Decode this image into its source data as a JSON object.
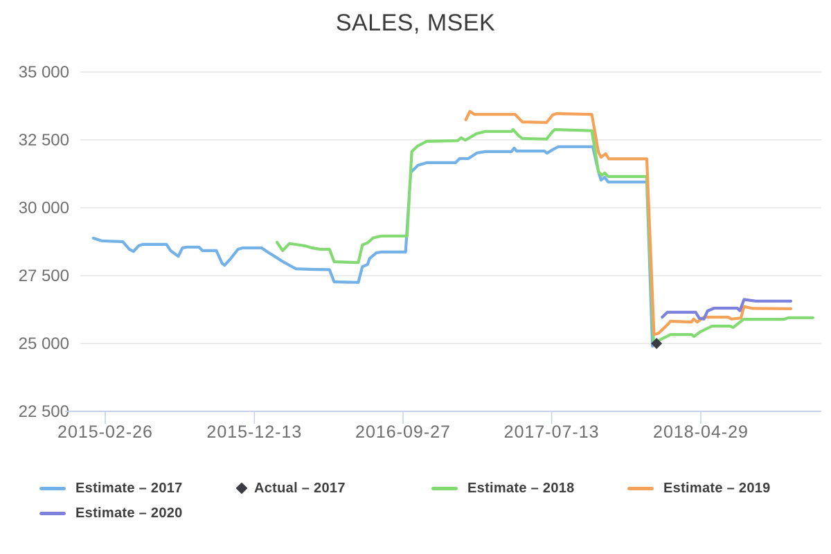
{
  "chart_data": {
    "type": "line",
    "title": "SALES, MSEK",
    "legend_position": "bottom-left",
    "grid": true,
    "y_axis": {
      "min": 22500,
      "max": 35000,
      "tick_interval": 2500,
      "ticks": [
        {
          "value": 35000,
          "label": "35 000"
        },
        {
          "value": 32500,
          "label": "32 500"
        },
        {
          "value": 30000,
          "label": "30 000"
        },
        {
          "value": 27500,
          "label": "27 500"
        },
        {
          "value": 25000,
          "label": "25 000"
        },
        {
          "value": 22500,
          "label": "22 500"
        }
      ]
    },
    "x_axis": {
      "tick_dates": [
        "2015-02-26",
        "2015-12-13",
        "2016-09-27",
        "2017-07-13",
        "2018-04-29"
      ],
      "tick_labels": [
        "2015-02-26",
        "2015-12-13",
        "2016-09-27",
        "2017-07-13",
        "2018-04-29"
      ]
    },
    "colors": {
      "estimate_2017": "#73B1E7",
      "actual_2017": "#3B3B43",
      "estimate_2018": "#83DA72",
      "estimate_2019": "#F4A259",
      "estimate_2020": "#7C81DC",
      "axis_line": "#C5D2EA",
      "gridline": "#E6E6E6",
      "axis_text": "#6E6E6E",
      "legend_text": "#3E3E3E",
      "title_text": "#3B3B3B"
    },
    "series": [
      {
        "name": "Estimate – 2017",
        "marker": "line",
        "color": "#73B1E7",
        "points": [
          [
            "2015-02-03",
            28880
          ],
          [
            "2015-02-19",
            28780
          ],
          [
            "2015-04-01",
            28750
          ],
          [
            "2015-04-14",
            28470
          ],
          [
            "2015-04-22",
            28390
          ],
          [
            "2015-05-02",
            28600
          ],
          [
            "2015-05-10",
            28650
          ],
          [
            "2015-06-25",
            28650
          ],
          [
            "2015-07-03",
            28420
          ],
          [
            "2015-07-18",
            28210
          ],
          [
            "2015-07-26",
            28520
          ],
          [
            "2015-08-04",
            28550
          ],
          [
            "2015-08-27",
            28550
          ],
          [
            "2015-09-03",
            28420
          ],
          [
            "2015-09-30",
            28420
          ],
          [
            "2015-10-11",
            27960
          ],
          [
            "2015-10-16",
            27880
          ],
          [
            "2015-10-28",
            28130
          ],
          [
            "2015-11-11",
            28470
          ],
          [
            "2015-11-20",
            28520
          ],
          [
            "2015-12-27",
            28520
          ],
          [
            "2016-01-06",
            28390
          ],
          [
            "2016-01-17",
            28260
          ],
          [
            "2016-02-05",
            28030
          ],
          [
            "2016-02-19",
            27880
          ],
          [
            "2016-03-03",
            27750
          ],
          [
            "2016-04-03",
            27730
          ],
          [
            "2016-05-07",
            27720
          ],
          [
            "2016-05-16",
            27270
          ],
          [
            "2016-07-02",
            27250
          ],
          [
            "2016-07-10",
            27830
          ],
          [
            "2016-07-20",
            27910
          ],
          [
            "2016-07-24",
            28130
          ],
          [
            "2016-08-06",
            28340
          ],
          [
            "2016-08-16",
            28370
          ],
          [
            "2016-10-02",
            28370
          ],
          [
            "2016-10-12",
            31300
          ],
          [
            "2016-10-26",
            31560
          ],
          [
            "2016-11-12",
            31660
          ],
          [
            "2017-01-07",
            31660
          ],
          [
            "2017-01-15",
            31810
          ],
          [
            "2017-02-01",
            31810
          ],
          [
            "2017-02-18",
            32020
          ],
          [
            "2017-03-06",
            32070
          ],
          [
            "2017-04-26",
            32070
          ],
          [
            "2017-05-01",
            32200
          ],
          [
            "2017-05-06",
            32090
          ],
          [
            "2017-06-29",
            32090
          ],
          [
            "2017-07-04",
            32010
          ],
          [
            "2017-07-15",
            32140
          ],
          [
            "2017-07-26",
            32250
          ],
          [
            "2017-10-01",
            32250
          ],
          [
            "2017-10-12",
            31330
          ],
          [
            "2017-10-17",
            31020
          ],
          [
            "2017-10-24",
            31120
          ],
          [
            "2017-10-31",
            30950
          ],
          [
            "2018-01-14",
            30950
          ],
          [
            "2018-01-25",
            24900
          ]
        ]
      },
      {
        "name": "Estimate – 2018",
        "marker": "line",
        "color": "#83DA72",
        "points": [
          [
            "2016-01-26",
            28730
          ],
          [
            "2016-02-06",
            28420
          ],
          [
            "2016-02-19",
            28680
          ],
          [
            "2016-03-20",
            28600
          ],
          [
            "2016-04-03",
            28520
          ],
          [
            "2016-04-20",
            28470
          ],
          [
            "2016-05-07",
            28470
          ],
          [
            "2016-05-16",
            28010
          ],
          [
            "2016-07-02",
            27980
          ],
          [
            "2016-07-10",
            28630
          ],
          [
            "2016-07-20",
            28710
          ],
          [
            "2016-07-31",
            28890
          ],
          [
            "2016-08-16",
            28960
          ],
          [
            "2016-10-05",
            28960
          ],
          [
            "2016-10-14",
            32070
          ],
          [
            "2016-10-25",
            32270
          ],
          [
            "2016-11-12",
            32450
          ],
          [
            "2017-01-11",
            32470
          ],
          [
            "2017-01-18",
            32580
          ],
          [
            "2017-01-26",
            32490
          ],
          [
            "2017-02-17",
            32730
          ],
          [
            "2017-03-06",
            32810
          ],
          [
            "2017-04-26",
            32810
          ],
          [
            "2017-04-29",
            32880
          ],
          [
            "2017-05-10",
            32650
          ],
          [
            "2017-05-17",
            32550
          ],
          [
            "2017-07-03",
            32530
          ],
          [
            "2017-07-15",
            32810
          ],
          [
            "2017-07-19",
            32880
          ],
          [
            "2017-09-29",
            32840
          ],
          [
            "2017-10-12",
            31330
          ],
          [
            "2017-10-19",
            31200
          ],
          [
            "2017-10-24",
            31280
          ],
          [
            "2017-10-31",
            31150
          ],
          [
            "2018-01-14",
            31150
          ],
          [
            "2018-01-27",
            25050
          ],
          [
            "2018-02-02",
            25070
          ],
          [
            "2018-03-01",
            25330
          ],
          [
            "2018-04-11",
            25330
          ],
          [
            "2018-04-16",
            25260
          ],
          [
            "2018-04-28",
            25430
          ],
          [
            "2018-05-21",
            25640
          ],
          [
            "2018-06-25",
            25640
          ],
          [
            "2018-07-01",
            25590
          ],
          [
            "2018-07-21",
            25890
          ],
          [
            "2018-10-07",
            25890
          ],
          [
            "2018-10-17",
            25950
          ],
          [
            "2018-12-03",
            25950
          ]
        ]
      },
      {
        "name": "Estimate – 2019",
        "marker": "line",
        "color": "#F4A259",
        "points": [
          [
            "2017-01-27",
            33240
          ],
          [
            "2017-02-04",
            33550
          ],
          [
            "2017-02-13",
            33440
          ],
          [
            "2017-05-03",
            33440
          ],
          [
            "2017-05-17",
            33160
          ],
          [
            "2017-07-03",
            33140
          ],
          [
            "2017-07-15",
            33420
          ],
          [
            "2017-07-23",
            33470
          ],
          [
            "2017-09-29",
            33440
          ],
          [
            "2017-10-12",
            32040
          ],
          [
            "2017-10-17",
            31860
          ],
          [
            "2017-10-26",
            31990
          ],
          [
            "2017-11-01",
            31800
          ],
          [
            "2018-01-14",
            31800
          ],
          [
            "2018-01-28",
            25330
          ],
          [
            "2018-02-06",
            25380
          ],
          [
            "2018-02-24",
            25710
          ],
          [
            "2018-03-01",
            25820
          ],
          [
            "2018-04-11",
            25790
          ],
          [
            "2018-04-15",
            25900
          ],
          [
            "2018-04-22",
            25790
          ],
          [
            "2018-05-05",
            25970
          ],
          [
            "2018-06-21",
            25970
          ],
          [
            "2018-06-28",
            25900
          ],
          [
            "2018-07-16",
            25940
          ],
          [
            "2018-07-22",
            26360
          ],
          [
            "2018-08-08",
            26290
          ],
          [
            "2018-10-21",
            26280
          ]
        ]
      },
      {
        "name": "Estimate – 2020",
        "marker": "line",
        "color": "#7C81DC",
        "points": [
          [
            "2018-02-13",
            25970
          ],
          [
            "2018-02-23",
            26150
          ],
          [
            "2018-04-19",
            26150
          ],
          [
            "2018-04-26",
            25930
          ],
          [
            "2018-05-05",
            25900
          ],
          [
            "2018-05-12",
            26200
          ],
          [
            "2018-05-25",
            26300
          ],
          [
            "2018-07-09",
            26300
          ],
          [
            "2018-07-14",
            26210
          ],
          [
            "2018-07-22",
            26620
          ],
          [
            "2018-08-14",
            26560
          ],
          [
            "2018-10-21",
            26560
          ]
        ]
      },
      {
        "name": "Actual – 2017",
        "marker": "diamond",
        "color": "#3B3B43",
        "points": [
          [
            "2018-02-02",
            25000
          ]
        ]
      }
    ],
    "legend_order": [
      "Estimate – 2017",
      "Actual – 2017",
      "Estimate – 2018",
      "Estimate – 2019",
      "Estimate – 2020"
    ]
  }
}
